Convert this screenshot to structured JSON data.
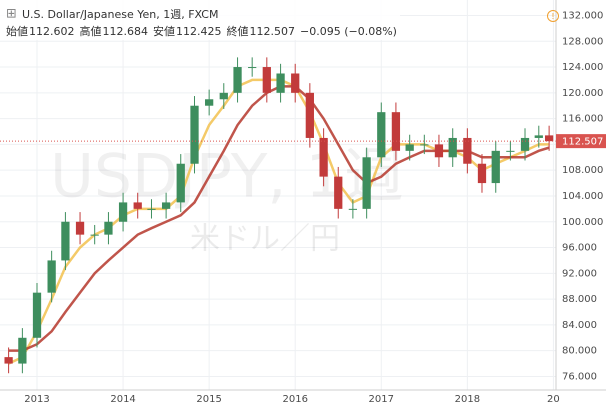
{
  "header": {
    "title": "U.S. Dollar/Japanese Yen, 1週, FXCM",
    "open_label": "始値",
    "open": 112.602,
    "high_label": "高値",
    "high": 112.684,
    "low_label": "安値",
    "low": 112.425,
    "close_label": "終値",
    "close": 112.507,
    "change": "−0.095 (−0.08%)",
    "watermark": "USDJPY, 1週",
    "watermark_sub": "米ドル／円"
  },
  "chart_data": {
    "type": "candlestick",
    "x": [
      2012.67,
      2012.83,
      2013.0,
      2013.17,
      2013.33,
      2013.5,
      2013.67,
      2013.83,
      2014.0,
      2014.17,
      2014.33,
      2014.5,
      2014.67,
      2014.83,
      2015.0,
      2015.17,
      2015.33,
      2015.5,
      2015.67,
      2015.83,
      2016.0,
      2016.17,
      2016.33,
      2016.5,
      2016.67,
      2016.83,
      2017.0,
      2017.17,
      2017.33,
      2017.5,
      2017.67,
      2017.83,
      2018.0,
      2018.17,
      2018.33,
      2018.5,
      2018.67,
      2018.83,
      2018.95
    ],
    "open": [
      79,
      78,
      82,
      89,
      94,
      100,
      98,
      98,
      100,
      103,
      102,
      102,
      103,
      109,
      118,
      119,
      120,
      124,
      124,
      120,
      123,
      120,
      113,
      107,
      102,
      102,
      110,
      117,
      111,
      112,
      112,
      110,
      113,
      109,
      106,
      111,
      111,
      113,
      113.4
    ],
    "high": [
      80.5,
      83.5,
      90.5,
      95.5,
      101.5,
      101.5,
      99.5,
      101.5,
      104.5,
      104.5,
      103.5,
      104.5,
      110.5,
      119.5,
      120.5,
      121.5,
      125.5,
      125.5,
      125.5,
      124.5,
      124.5,
      121.5,
      114.5,
      108.5,
      103.5,
      111.5,
      118.5,
      118.5,
      113.5,
      113.5,
      113.5,
      114.5,
      114.5,
      110.5,
      112.5,
      112.5,
      114.5,
      114.9,
      114.9
    ],
    "low": [
      76.5,
      76.5,
      80.5,
      87.5,
      92.5,
      96.5,
      96.5,
      96.5,
      98.5,
      100.5,
      100.5,
      100.5,
      101.5,
      107.5,
      116.5,
      117.5,
      118.5,
      122.5,
      118.5,
      118.5,
      118.5,
      111.5,
      105.5,
      100.5,
      100.5,
      100.5,
      108.5,
      109.5,
      109.5,
      110.5,
      108.5,
      108.5,
      107.5,
      104.5,
      104.5,
      109.5,
      109.5,
      111.5,
      111
    ],
    "close": [
      78,
      82,
      89,
      94,
      100,
      98,
      98,
      100,
      103,
      102,
      102,
      103,
      109,
      118,
      119,
      120,
      124,
      124,
      120,
      123,
      120,
      113,
      107,
      102,
      102,
      110,
      117,
      111,
      112,
      112,
      110,
      113,
      109,
      106,
      111,
      111,
      113,
      113.4,
      112.5
    ],
    "up_color": "#3e8e5e",
    "down_color": "#c23b3b",
    "series": [
      {
        "color": "#f2c14e",
        "values": [
          78,
          79,
          83,
          88,
          93,
          96,
          98,
          99,
          101,
          102,
          102,
          102,
          104,
          110,
          115,
          118,
          121,
          122,
          122,
          122,
          121,
          117,
          112,
          106,
          103,
          104,
          110,
          112,
          112,
          112,
          111,
          111,
          110,
          108,
          109,
          110,
          111,
          112,
          112
        ]
      },
      {
        "color": "#b5372c",
        "values": [
          80,
          80,
          81,
          83,
          86,
          89,
          92,
          94,
          96,
          98,
          99,
          100,
          101,
          103,
          107,
          111,
          115,
          118,
          120,
          121,
          121,
          119,
          116,
          112,
          108,
          106,
          107,
          109,
          110,
          111,
          111,
          111,
          111,
          110,
          110,
          110,
          110,
          111,
          111.5
        ]
      }
    ],
    "last_price": 112.507,
    "last_price_color": "#d9534f",
    "xlim": [
      2012.57,
      2019.03
    ],
    "ylim": [
      73.9,
      134.4
    ],
    "xticks": [
      2013,
      2014,
      2015,
      2016,
      2017,
      2018,
      {
        "value": 2019,
        "label": "20"
      }
    ],
    "yticks": [
      {
        "value": 76,
        "label": "76.000"
      },
      {
        "value": 80,
        "label": "80.000"
      },
      {
        "value": 84,
        "label": "84.000"
      },
      {
        "value": 88,
        "label": "88.000"
      },
      {
        "value": 92,
        "label": "92.000"
      },
      {
        "value": 96,
        "label": "96.000"
      },
      {
        "value": 100,
        "label": "100.000"
      },
      {
        "value": 104,
        "label": "104.000"
      },
      {
        "value": 108,
        "label": "108.000"
      },
      {
        "value": 112,
        "label": "112.000"
      },
      {
        "value": 116,
        "label": "116.000"
      },
      {
        "value": 120,
        "label": "120.000"
      },
      {
        "value": 124,
        "label": "124.000"
      },
      {
        "value": 128,
        "label": "128.000"
      },
      {
        "value": 132,
        "label": "132.000"
      }
    ],
    "grid": true
  }
}
